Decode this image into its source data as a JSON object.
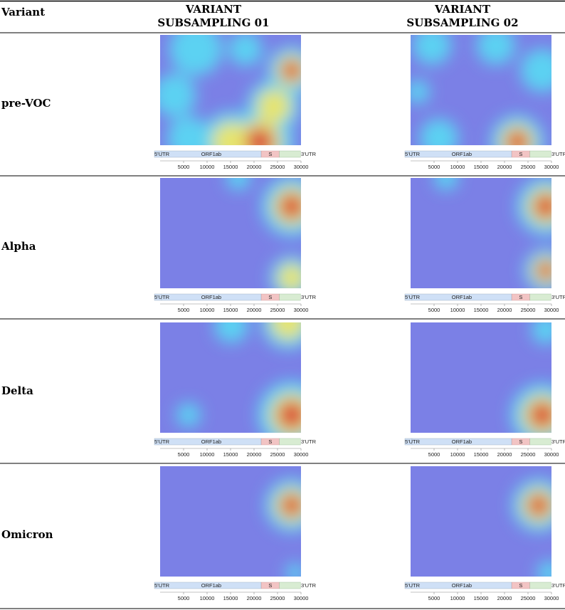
{
  "header": {
    "columns": [
      "Variant",
      [
        "VARIANT",
        "SUBSAMPLING 01"
      ],
      [
        "VARIANT",
        "SUBSAMPLING 02"
      ]
    ]
  },
  "rows": [
    "pre-VOC",
    "Alpha",
    "Delta",
    "Omicron"
  ],
  "genome": {
    "labels": [
      "5'UTR",
      "ORF1ab",
      "S",
      "3'UTR"
    ],
    "ticks": [
      5000,
      10000,
      15000,
      20000,
      25000,
      30000
    ]
  }
}
